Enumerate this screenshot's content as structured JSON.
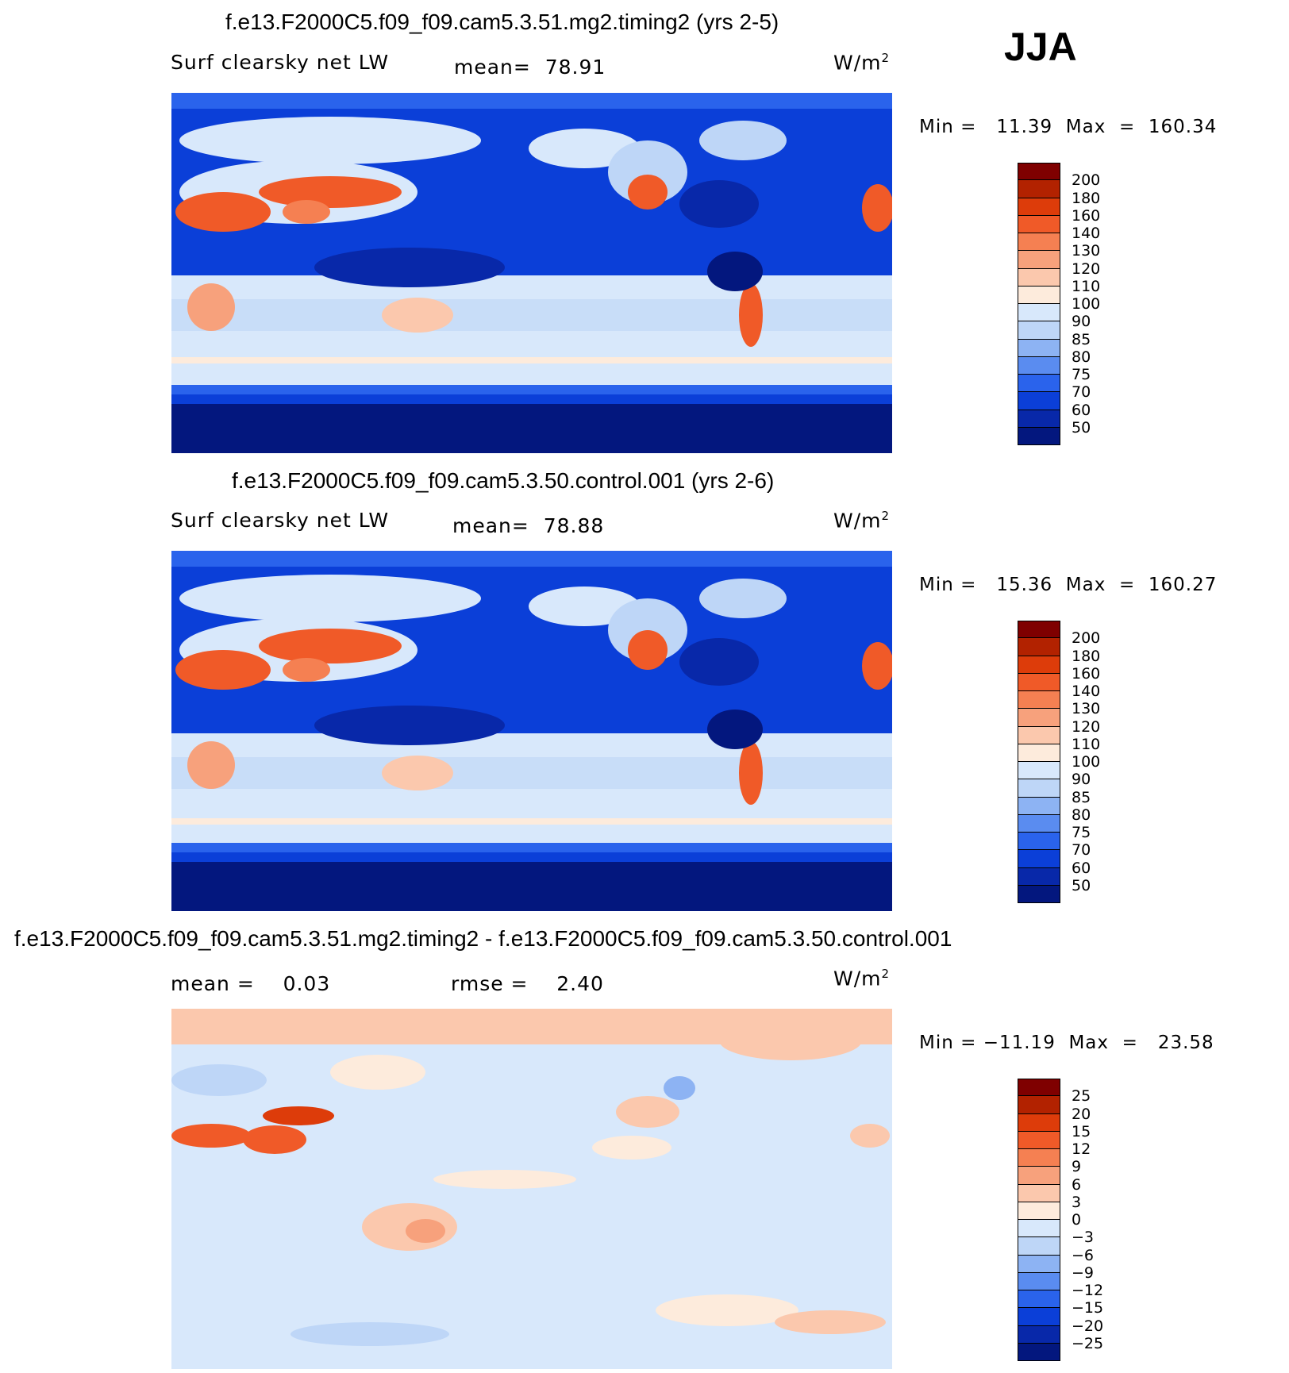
{
  "season": "JJA",
  "panels": [
    {
      "title": "f.e13.F2000C5.f09_f09.cam5.3.51.mg2.timing2 (yrs 2-5)",
      "left_label": "Surf clearsky net LW",
      "center_label": "mean=  78.91",
      "units": "W/m",
      "units_sup": "2",
      "min_max": "Min =   11.39  Max  =  160.34",
      "colorbar_ticks": [
        "200",
        "180",
        "160",
        "140",
        "130",
        "120",
        "110",
        "100",
        "90",
        "85",
        "80",
        "75",
        "70",
        "60",
        "50"
      ],
      "colors": [
        "#7f0000",
        "#b22200",
        "#dd3c0a",
        "#f05a28",
        "#f58052",
        "#f7a17c",
        "#fbc8ad",
        "#fdebdc",
        "#d8e8fb",
        "#bed6f7",
        "#8db3f3",
        "#5a8cf0",
        "#2a63ec",
        "#0b3fd8",
        "#0828a9",
        "#03177e"
      ]
    },
    {
      "title": "f.e13.F2000C5.f09_f09.cam5.3.50.control.001 (yrs 2-6)",
      "left_label": "Surf clearsky net LW",
      "center_label": "mean=  78.88",
      "units": "W/m",
      "units_sup": "2",
      "min_max": "Min =   15.36  Max  =  160.27",
      "colorbar_ticks": [
        "200",
        "180",
        "160",
        "140",
        "130",
        "120",
        "110",
        "100",
        "90",
        "85",
        "80",
        "75",
        "70",
        "60",
        "50"
      ],
      "colors": [
        "#7f0000",
        "#b22200",
        "#dd3c0a",
        "#f05a28",
        "#f58052",
        "#f7a17c",
        "#fbc8ad",
        "#fdebdc",
        "#d8e8fb",
        "#bed6f7",
        "#8db3f3",
        "#5a8cf0",
        "#2a63ec",
        "#0b3fd8",
        "#0828a9",
        "#03177e"
      ]
    },
    {
      "title": "f.e13.F2000C5.f09_f09.cam5.3.51.mg2.timing2 - f.e13.F2000C5.f09_f09.cam5.3.50.control.001",
      "left_label": "mean =    0.03",
      "center_label": "rmse =    2.40",
      "units": "W/m",
      "units_sup": "2",
      "min_max": "Min = −11.19  Max  =   23.58",
      "colorbar_ticks": [
        "25",
        "20",
        "15",
        "12",
        "9",
        "6",
        "3",
        "0",
        "−3",
        "−6",
        "−9",
        "−12",
        "−15",
        "−20",
        "−25"
      ],
      "colors": [
        "#7f0000",
        "#b22200",
        "#dd3c0a",
        "#f05a28",
        "#f58052",
        "#f7a17c",
        "#fbc8ad",
        "#fdebdc",
        "#d8e8fb",
        "#bed6f7",
        "#8db3f3",
        "#5a8cf0",
        "#2a63ec",
        "#0b3fd8",
        "#0828a9",
        "#03177e"
      ]
    }
  ],
  "chart_data": [
    {
      "type": "heatmap",
      "title": "f.e13.F2000C5.f09_f09.cam5.3.51.mg2.timing2 (yrs 2-5)",
      "variable": "Surf clearsky net LW",
      "units": "W/m2",
      "mean": 78.91,
      "min": 11.39,
      "max": 160.34,
      "contour_levels": [
        50,
        60,
        70,
        75,
        80,
        85,
        90,
        100,
        110,
        120,
        130,
        140,
        160,
        180,
        200
      ]
    },
    {
      "type": "heatmap",
      "title": "f.e13.F2000C5.f09_f09.cam5.3.50.control.001 (yrs 2-6)",
      "variable": "Surf clearsky net LW",
      "units": "W/m2",
      "mean": 78.88,
      "min": 15.36,
      "max": 160.27,
      "contour_levels": [
        50,
        60,
        70,
        75,
        80,
        85,
        90,
        100,
        110,
        120,
        130,
        140,
        160,
        180,
        200
      ]
    },
    {
      "type": "heatmap",
      "title": "f.e13.F2000C5.f09_f09.cam5.3.51.mg2.timing2 - f.e13.F2000C5.f09_f09.cam5.3.50.control.001",
      "units": "W/m2",
      "mean": 0.03,
      "rmse": 2.4,
      "min": -11.19,
      "max": 23.58,
      "contour_levels": [
        -25,
        -20,
        -15,
        -12,
        -9,
        -6,
        -3,
        0,
        3,
        6,
        9,
        12,
        15,
        20,
        25
      ]
    }
  ]
}
